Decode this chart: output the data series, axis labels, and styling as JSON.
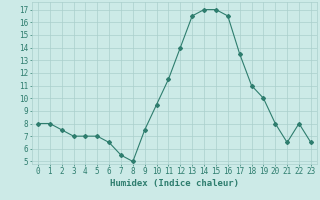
{
  "x": [
    0,
    1,
    2,
    3,
    4,
    5,
    6,
    7,
    8,
    9,
    10,
    11,
    12,
    13,
    14,
    15,
    16,
    17,
    18,
    19,
    20,
    21,
    22,
    23
  ],
  "y": [
    8,
    8,
    7.5,
    7,
    7,
    7,
    6.5,
    5.5,
    5,
    7.5,
    9.5,
    11.5,
    14,
    16.5,
    17,
    17,
    16.5,
    13.5,
    11,
    10,
    8,
    6.5,
    8,
    6.5
  ],
  "line_color": "#2e7d6e",
  "marker": "D",
  "marker_size": 2,
  "bg_color": "#cceae7",
  "grid_color": "#aacfcc",
  "xlabel": "Humidex (Indice chaleur)",
  "ylim": [
    4.8,
    17.6
  ],
  "xlim": [
    -0.5,
    23.5
  ],
  "yticks": [
    5,
    6,
    7,
    8,
    9,
    10,
    11,
    12,
    13,
    14,
    15,
    16,
    17
  ],
  "xticks": [
    0,
    1,
    2,
    3,
    4,
    5,
    6,
    7,
    8,
    9,
    10,
    11,
    12,
    13,
    14,
    15,
    16,
    17,
    18,
    19,
    20,
    21,
    22,
    23
  ],
  "tick_color": "#2e7d6e",
  "label_color": "#2e7d6e",
  "tick_fontsize": 5.5,
  "xlabel_fontsize": 6.5
}
